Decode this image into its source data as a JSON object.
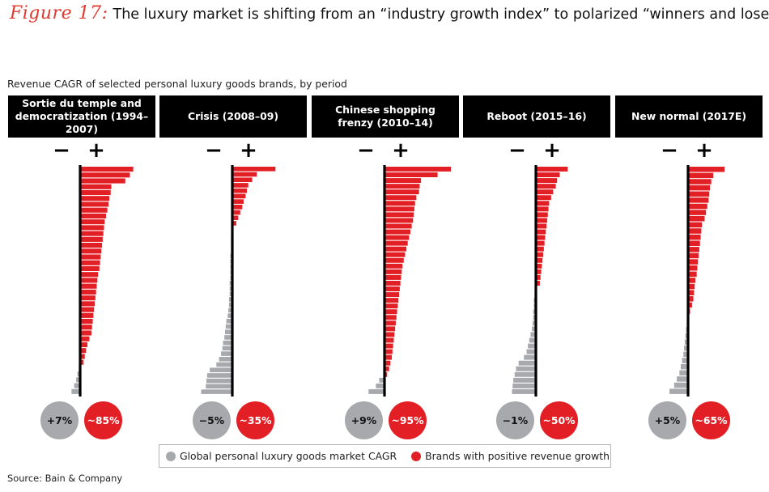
{
  "title": {
    "figure_label": "Figure 17:",
    "text": "The luxury market is shifting from an “industry growth index” to polarized “winners and losers”"
  },
  "subtitle": "Revenue CAGR of selected personal luxury goods brands, by period",
  "signs": {
    "negative": "−",
    "positive": "+"
  },
  "colors": {
    "positive": "#e31f26",
    "negative": "#a7a9ac",
    "axis": "#000000",
    "header_bg": "#000000"
  },
  "chart_data": {
    "type": "bar",
    "orientation": "horizontal",
    "title": "Revenue CAGR of selected personal luxury goods brands, by period",
    "note": "Each panel shows brands sorted by revenue CAGR; red bars = positive growth, grey bars = negative growth",
    "panels": [
      {
        "name": "Sortie du temple and democratization (1994–2007)",
        "market_cagr": "+7%",
        "share_positive": "~85%",
        "bars": [
          80,
          75,
          68,
          47,
          46,
          44,
          43,
          41,
          39,
          37,
          36,
          35,
          34,
          33,
          32,
          31,
          30,
          29,
          27,
          26,
          25,
          24,
          23,
          22,
          21,
          20,
          19,
          18,
          17,
          14,
          11,
          9,
          7,
          5,
          -2,
          -4,
          -6,
          -9,
          -13
        ]
      },
      {
        "name": "Crisis (2008–09)",
        "market_cagr": "−5%",
        "share_positive": "~35%",
        "bars": [
          65,
          37,
          30,
          24,
          22,
          20,
          17,
          15,
          12,
          9,
          6,
          -1,
          -1,
          -2,
          -2,
          -2,
          -3,
          -3,
          -3,
          -3,
          -3,
          -4,
          -4,
          -4,
          -5,
          -5,
          -6,
          -7,
          -9,
          -10,
          -11,
          -12,
          -14,
          -15,
          -17,
          -20,
          -24,
          -34,
          -38,
          -39,
          -40,
          -47
        ]
      },
      {
        "name": "Chinese shopping frenzy (2010–14)",
        "market_cagr": "+9%",
        "share_positive": "~95%",
        "bars": [
          100,
          80,
          55,
          53,
          52,
          48,
          46,
          45,
          44,
          43,
          41,
          39,
          37,
          35,
          33,
          31,
          29,
          27,
          26,
          25,
          24,
          23,
          22,
          21,
          20,
          19,
          18,
          17,
          16,
          15,
          14,
          13,
          12,
          11,
          9,
          7,
          4,
          -8,
          -13,
          -24
        ]
      },
      {
        "name": "Reboot (2015–16)",
        "market_cagr": "−1%",
        "share_positive": "~50%",
        "bars": [
          48,
          36,
          32,
          30,
          26,
          23,
          20,
          19,
          18,
          17,
          16,
          15,
          14,
          13,
          12,
          11,
          10,
          9,
          8,
          7,
          6,
          -2,
          -2,
          -3,
          -3,
          -4,
          -4,
          -5,
          -6,
          -8,
          -10,
          -12,
          -14,
          -18,
          -26,
          -30,
          -32,
          -34,
          -35,
          -36
        ]
      },
      {
        "name": "New normal (2017E)",
        "market_cagr": "+5%",
        "share_positive": "~65%",
        "bars": [
          55,
          38,
          35,
          33,
          32,
          31,
          29,
          27,
          25,
          21,
          20,
          19,
          18,
          17,
          16,
          15,
          14,
          13,
          11,
          10,
          9,
          8,
          6,
          3,
          -1,
          -2,
          -3,
          -4,
          -5,
          -6,
          -7,
          -9,
          -11,
          -13,
          -17,
          -21,
          -28
        ]
      }
    ],
    "legend": [
      {
        "label": "Global personal luxury goods market CAGR",
        "color": "#a7a9ac"
      },
      {
        "label": "Brands with positive revenue growth",
        "color": "#e31f26"
      }
    ]
  },
  "source": "Source: Bain & Company"
}
